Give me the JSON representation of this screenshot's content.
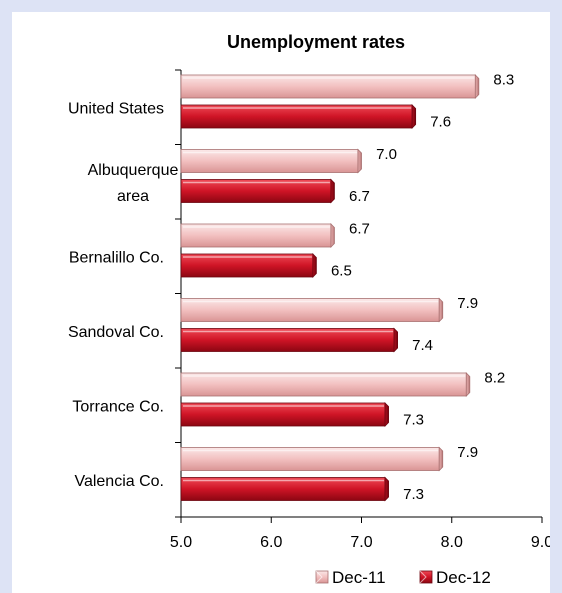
{
  "chart_data": {
    "type": "bar",
    "orientation": "horizontal",
    "title": "Unemployment rates",
    "categories": [
      [
        "United States"
      ],
      [
        "Albuquerque",
        "area"
      ],
      [
        "Bernalillo Co."
      ],
      [
        "Sandoval Co."
      ],
      [
        "Torrance Co."
      ],
      [
        "Valencia Co."
      ]
    ],
    "series": [
      {
        "name": "Dec-11",
        "values": [
          8.3,
          7.0,
          6.7,
          7.9,
          8.2,
          7.9
        ],
        "labels": [
          "8.3",
          "7.0",
          "6.7",
          "7.9",
          "8.2",
          "7.9"
        ],
        "color": "#f2c4c4"
      },
      {
        "name": "Dec-12",
        "values": [
          7.6,
          6.7,
          6.5,
          7.4,
          7.3,
          7.3
        ],
        "labels": [
          "7.6",
          "6.7",
          "6.5",
          "7.4",
          "7.3",
          "7.3"
        ],
        "color": "#d2172a"
      }
    ],
    "xlim": [
      5.0,
      9.0
    ],
    "xticks": [
      "5.0",
      "6.0",
      "7.0",
      "8.0",
      "9.0"
    ],
    "grid": false,
    "legend_position": "bottom-right",
    "background": "#dde3f5"
  }
}
